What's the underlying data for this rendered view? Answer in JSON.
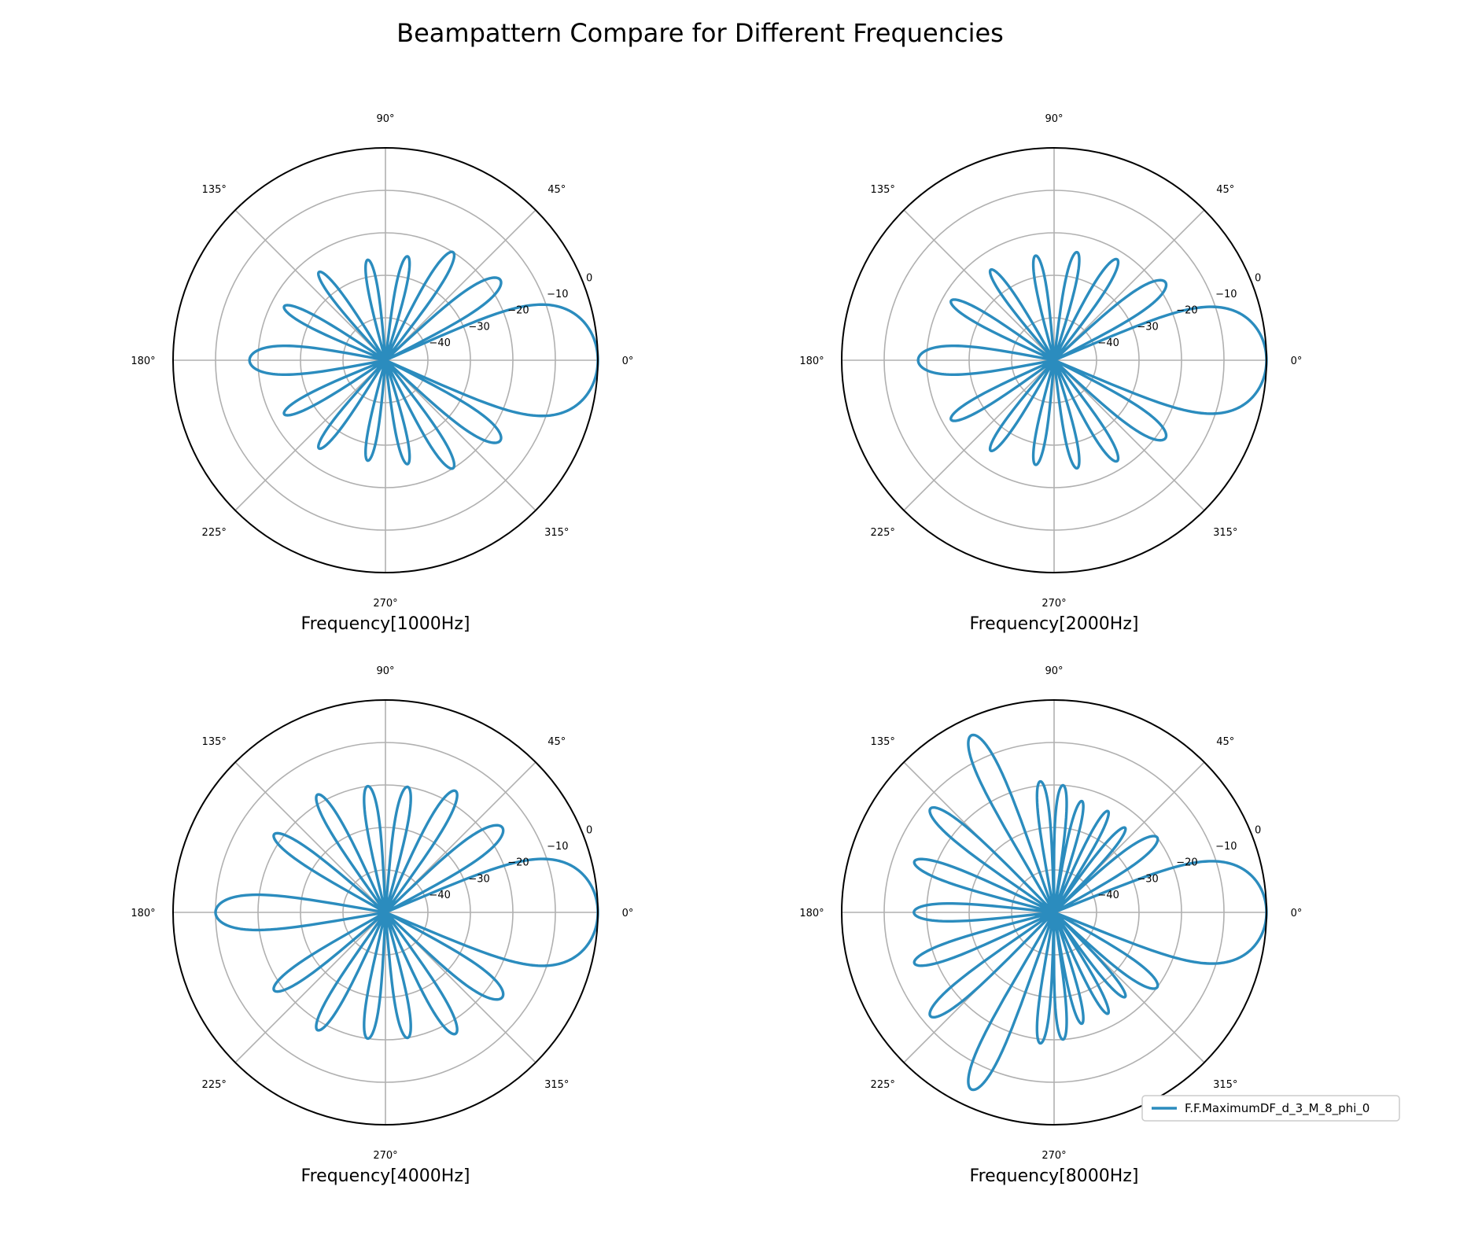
{
  "title": "Beampattern Compare for Different Frequencies",
  "colors": {
    "series": "#2b8cbe",
    "grid": "#b0b0b0",
    "frame": "#000000"
  },
  "angle_tick_labels": [
    "0°",
    "45°",
    "90°",
    "135°",
    "180°",
    "225°",
    "270°",
    "315°"
  ],
  "legend": {
    "label": "F.F.MaximumDF_d_3_M_8_phi_0"
  },
  "chart_data": [
    {
      "type": "polar-line",
      "title": "Frequency[1000Hz]",
      "rlim": [
        -50,
        0
      ],
      "r_tick_labels": [
        "−40",
        "−30",
        "−20",
        "−10",
        "0"
      ],
      "series": [
        {
          "name": "F.F.MaximumDF_d_3_M_8_phi_0",
          "lobes": [
            {
              "angle": 0,
              "level": 0,
              "width": 48
            },
            {
              "angle": 35,
              "level": -17,
              "width": 16
            },
            {
              "angle": 58,
              "level": -20,
              "width": 12
            },
            {
              "angle": 78,
              "level": -25,
              "width": 11
            },
            {
              "angle": 100,
              "level": -26,
              "width": 11
            },
            {
              "angle": 127,
              "level": -24,
              "width": 11
            },
            {
              "angle": 152,
              "level": -23,
              "width": 12
            },
            {
              "angle": 180,
              "level": -18,
              "width": 22
            },
            {
              "angle": 208,
              "level": -23,
              "width": 12
            },
            {
              "angle": 233,
              "level": -24,
              "width": 11
            },
            {
              "angle": 260,
              "level": -26,
              "width": 11
            },
            {
              "angle": 282,
              "level": -25,
              "width": 11
            },
            {
              "angle": 302,
              "level": -20,
              "width": 12
            },
            {
              "angle": 325,
              "level": -17,
              "width": 16
            }
          ]
        }
      ]
    },
    {
      "type": "polar-line",
      "title": "Frequency[2000Hz]",
      "rlim": [
        -50,
        0
      ],
      "r_tick_labels": [
        "−40",
        "−30",
        "−20",
        "−10",
        "0"
      ],
      "series": [
        {
          "name": "F.F.MaximumDF_d_3_M_8_phi_0",
          "lobes": [
            {
              "angle": 0,
              "level": 0,
              "width": 46
            },
            {
              "angle": 35,
              "level": -18,
              "width": 16
            },
            {
              "angle": 58,
              "level": -22,
              "width": 12
            },
            {
              "angle": 78,
              "level": -24,
              "width": 11
            },
            {
              "angle": 100,
              "level": -25,
              "width": 11
            },
            {
              "angle": 125,
              "level": -24,
              "width": 11
            },
            {
              "angle": 150,
              "level": -22,
              "width": 12
            },
            {
              "angle": 180,
              "level": -18,
              "width": 22
            },
            {
              "angle": 210,
              "level": -22,
              "width": 12
            },
            {
              "angle": 235,
              "level": -24,
              "width": 11
            },
            {
              "angle": 260,
              "level": -25,
              "width": 11
            },
            {
              "angle": 282,
              "level": -24,
              "width": 11
            },
            {
              "angle": 302,
              "level": -22,
              "width": 12
            },
            {
              "angle": 325,
              "level": -18,
              "width": 16
            }
          ]
        }
      ]
    },
    {
      "type": "polar-line",
      "title": "Frequency[4000Hz]",
      "rlim": [
        -50,
        0
      ],
      "r_tick_labels": [
        "−40",
        "−30",
        "−20",
        "−10",
        "0"
      ],
      "series": [
        {
          "name": "F.F.MaximumDF_d_3_M_8_phi_0",
          "lobes": [
            {
              "angle": 0,
              "level": 0,
              "width": 46
            },
            {
              "angle": 36,
              "level": -16,
              "width": 16
            },
            {
              "angle": 60,
              "level": -17,
              "width": 12
            },
            {
              "angle": 80,
              "level": -20,
              "width": 11
            },
            {
              "angle": 98,
              "level": -20,
              "width": 11
            },
            {
              "angle": 120,
              "level": -18,
              "width": 11
            },
            {
              "angle": 145,
              "level": -18,
              "width": 12
            },
            {
              "angle": 180,
              "level": -10,
              "width": 20
            },
            {
              "angle": 215,
              "level": -18,
              "width": 12
            },
            {
              "angle": 240,
              "level": -18,
              "width": 11
            },
            {
              "angle": 262,
              "level": -20,
              "width": 11
            },
            {
              "angle": 280,
              "level": -20,
              "width": 11
            },
            {
              "angle": 300,
              "level": -17,
              "width": 12
            },
            {
              "angle": 324,
              "level": -16,
              "width": 16
            }
          ]
        }
      ]
    },
    {
      "type": "polar-line",
      "title": "Frequency[8000Hz]",
      "rlim": [
        -50,
        0
      ],
      "r_tick_labels": [
        "−40",
        "−30",
        "−20",
        "−10",
        "0"
      ],
      "series": [
        {
          "name": "F.F.MaximumDF_d_3_M_8_phi_0",
          "lobes": [
            {
              "angle": 0,
              "level": 0,
              "width": 44
            },
            {
              "angle": 36,
              "level": -20,
              "width": 14
            },
            {
              "angle": 50,
              "level": -24,
              "width": 10
            },
            {
              "angle": 62,
              "level": -23,
              "width": 9
            },
            {
              "angle": 76,
              "level": -23,
              "width": 9
            },
            {
              "angle": 86,
              "level": -20,
              "width": 9
            },
            {
              "angle": 96,
              "level": -19,
              "width": 9
            },
            {
              "angle": 115,
              "level": -4,
              "width": 11
            },
            {
              "angle": 140,
              "level": -12,
              "width": 11
            },
            {
              "angle": 160,
              "level": -15,
              "width": 11
            },
            {
              "angle": 180,
              "level": -17,
              "width": 13
            },
            {
              "angle": 200,
              "level": -15,
              "width": 11
            },
            {
              "angle": 220,
              "level": -12,
              "width": 11
            },
            {
              "angle": 245,
              "level": -4,
              "width": 11
            },
            {
              "angle": 264,
              "level": -19,
              "width": 9
            },
            {
              "angle": 274,
              "level": -20,
              "width": 9
            },
            {
              "angle": 284,
              "level": -23,
              "width": 9
            },
            {
              "angle": 298,
              "level": -23,
              "width": 9
            },
            {
              "angle": 310,
              "level": -24,
              "width": 10
            },
            {
              "angle": 324,
              "level": -20,
              "width": 14
            }
          ]
        }
      ]
    }
  ]
}
